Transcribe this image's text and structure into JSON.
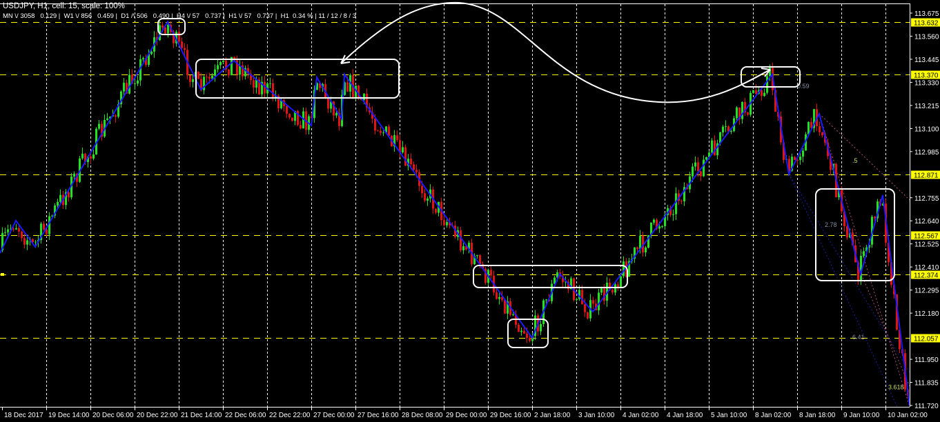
{
  "header": {
    "title": "USDJPY, H1, cell: 15, scale: 100%",
    "stats": "MN \\/ 3058   0.129 |  W1 \\/ 856   0.459 |  D1 /\\ 506   0.490 |  H4 \\/ 57   0.737 |  H1 \\/ 57   0.737 |  H1  0.34 % | 11 / 12 / 8 / 3"
  },
  "colors": {
    "background": "#000000",
    "bull": "#22e022",
    "bear": "#e01414",
    "zigzag": "#1a1aff",
    "level": "#ffff00",
    "grid": "#ffffff",
    "annotation": "#ffffff"
  },
  "chart_data": {
    "type": "candlestick",
    "symbol": "USDJPY",
    "timeframe": "H1",
    "ylim": [
      111.72,
      113.675
    ],
    "grid": "vertical dashed",
    "y_ticks": [
      "113.675",
      "113.560",
      "113.445",
      "113.330",
      "113.215",
      "113.100",
      "112.985",
      "112.755",
      "112.640",
      "112.525",
      "112.410",
      "112.295",
      "112.180",
      "111.950",
      "111.835",
      "111.720"
    ],
    "x_ticks": [
      "18 Dec 2017",
      "19 Dec 14:00",
      "20 Dec 06:00",
      "20 Dec 22:00",
      "21 Dec 14:00",
      "22 Dec 06:00",
      "22 Dec 22:00",
      "27 Dec 00:00",
      "27 Dec 16:00",
      "28 Dec 08:00",
      "29 Dec 00:00",
      "29 Dec 16:00",
      "2 Jan 18:00",
      "3 Jan 10:00",
      "4 Jan 02:00",
      "4 Jan 18:00",
      "5 Jan 10:00",
      "8 Jan 02:00",
      "8 Jan 18:00",
      "9 Jan 10:00",
      "10 Jan 02:00"
    ],
    "levels": [
      "113.632",
      "113.370",
      "112.871",
      "112.567",
      "112.374",
      "112.057"
    ],
    "zigzag": [
      {
        "t": "18 Dec 21:00",
        "p": 112.479
      },
      {
        "t": "19 Dec 03:00",
        "p": 112.641
      },
      {
        "t": "19 Dec 10:00",
        "p": 112.51
      },
      {
        "t": "21 Dec 10:00",
        "p": 113.632
      },
      {
        "t": "21 Dec 22:00",
        "p": 113.294
      },
      {
        "t": "22 Dec 10:00",
        "p": 113.438
      },
      {
        "t": "26 Dec 11:00",
        "p": 113.115
      },
      {
        "t": "27 Dec 02:00",
        "p": 113.355
      },
      {
        "t": "27 Dec 11:00",
        "p": 113.149
      },
      {
        "t": "27 Dec 12:00",
        "p": 113.37
      },
      {
        "t": "2 Jan 04:00",
        "p": 112.057
      },
      {
        "t": "3 Jan 04:00",
        "p": 112.376
      },
      {
        "t": "3 Jan 16:00",
        "p": 112.187
      },
      {
        "t": "8 Jan 09:00",
        "p": 113.37
      },
      {
        "t": "8 Jan 15:00",
        "p": 112.871
      },
      {
        "t": "9 Jan 02:00",
        "p": 113.173
      },
      {
        "t": "9 Jan 17:00",
        "p": 112.374
      },
      {
        "t": "10 Jan 01:00",
        "p": 112.768
      },
      {
        "t": "10 Jan 11:00",
        "p": 111.72
      }
    ],
    "fib_labels": [
      {
        "text": "0.59",
        "t": "8 Jan 18:00",
        "p": 113.3
      },
      {
        "text": ".5",
        "t": "9 Jan 14:00",
        "p": 112.93
      },
      {
        "text": "2.78",
        "t": "9 Jan 04:00",
        "p": 112.61
      },
      {
        "text": "6.41",
        "t": "9 Jan 14:00",
        "p": 112.05
      },
      {
        "text": "3.618",
        "t": "10 Jan 03:00",
        "p": 111.8
      }
    ]
  }
}
